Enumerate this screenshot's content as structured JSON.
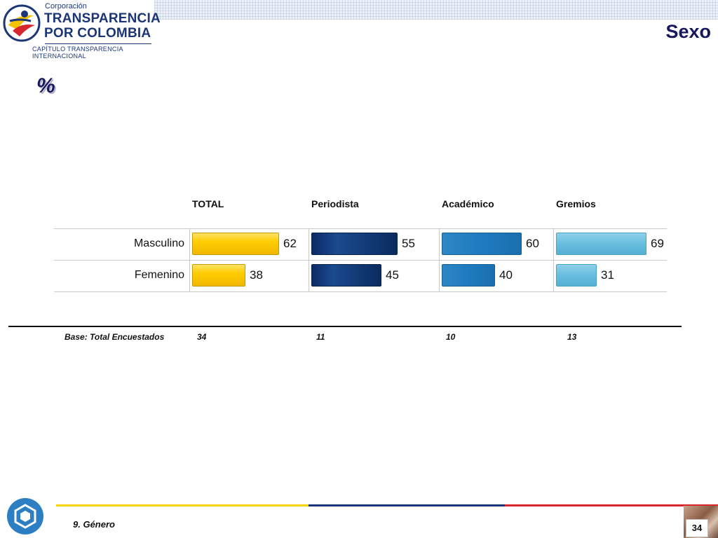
{
  "header": {
    "logo_corp": "Corporación",
    "logo_line1": "TRANSPARENCIA",
    "logo_line2": "POR COLOMBIA",
    "logo_chapter": "CAPÍTULO TRANSPARENCIA INTERNACIONAL",
    "title": "Sexo",
    "unit_symbol": "%"
  },
  "colors": {
    "title": "#17175e",
    "total": "#ffcc00",
    "periodista": "#0d2a66",
    "academico": "#1e7bbf",
    "gremios": "#67bedf"
  },
  "chart_data": {
    "type": "bar",
    "categories": [
      "Masculino",
      "Femenino"
    ],
    "series": [
      {
        "name": "TOTAL",
        "values": [
          62,
          38
        ]
      },
      {
        "name": "Periodista",
        "values": [
          55,
          45
        ]
      },
      {
        "name": "Académico",
        "values": [
          60,
          40
        ]
      },
      {
        "name": "Gremios",
        "values": [
          69,
          31
        ]
      }
    ],
    "ylim": [
      0,
      100
    ]
  },
  "base": {
    "label": "Base: Total Encuestados",
    "values": [
      "34",
      "11",
      "10",
      "13"
    ]
  },
  "footer": {
    "note": "9. Género",
    "page_number": "34"
  }
}
